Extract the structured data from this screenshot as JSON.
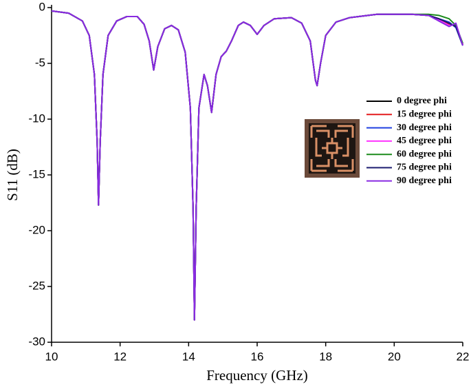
{
  "chart_data": {
    "type": "line",
    "xlabel": "Frequency (GHz)",
    "ylabel": "S11 (dB)",
    "xlim": [
      10,
      22
    ],
    "xticks": [
      10,
      12,
      14,
      16,
      18,
      20,
      22
    ],
    "ylim": [
      -30,
      0
    ],
    "yticks": [
      0,
      -5,
      -10,
      -15,
      -20,
      -25,
      -30
    ],
    "x": [
      10,
      10.5,
      10.9,
      11.1,
      11.25,
      11.33,
      11.37,
      11.42,
      11.5,
      11.65,
      11.9,
      12.2,
      12.5,
      12.7,
      12.85,
      12.98,
      13.1,
      13.3,
      13.5,
      13.7,
      13.9,
      14.05,
      14.13,
      14.17,
      14.22,
      14.3,
      14.45,
      14.55,
      14.67,
      14.8,
      14.95,
      15.1,
      15.25,
      15.45,
      15.6,
      15.8,
      16.0,
      16.2,
      16.5,
      17.0,
      17.3,
      17.55,
      17.7,
      17.75,
      17.85,
      18.0,
      18.3,
      18.7,
      19.5,
      20.5,
      21,
      21.3,
      21.6,
      21.8,
      22
    ],
    "series": [
      {
        "name": "0 degree phi",
        "color": "#000000",
        "values": [
          -0.3,
          -0.5,
          -1.2,
          -2.5,
          -6,
          -12,
          -17.7,
          -12,
          -6,
          -2.5,
          -1.2,
          -0.8,
          -0.8,
          -1.5,
          -3,
          -5.6,
          -3.5,
          -1.9,
          -1.6,
          -2,
          -4,
          -9,
          -18,
          -28,
          -18,
          -9,
          -6,
          -7,
          -9.4,
          -6,
          -4.4,
          -3.9,
          -3,
          -1.6,
          -1.3,
          -1.6,
          -2.4,
          -1.6,
          -1,
          -0.9,
          -1.4,
          -3,
          -6.5,
          -7,
          -5,
          -2.5,
          -1.3,
          -0.9,
          -0.6,
          -0.6,
          -0.7,
          -1.0,
          -1.5,
          -1.6,
          -3.3
        ]
      },
      {
        "name": "15 degree phi",
        "color": "#e31a1c",
        "values": [
          -0.3,
          -0.5,
          -1.2,
          -2.5,
          -6,
          -12,
          -17.7,
          -12,
          -6,
          -2.5,
          -1.2,
          -0.8,
          -0.8,
          -1.5,
          -3,
          -5.6,
          -3.5,
          -1.9,
          -1.6,
          -2,
          -4,
          -9,
          -18,
          -28,
          -18,
          -9,
          -6,
          -7,
          -9.4,
          -6,
          -4.4,
          -3.9,
          -3,
          -1.6,
          -1.3,
          -1.6,
          -2.4,
          -1.6,
          -1,
          -0.9,
          -1.4,
          -3,
          -6.5,
          -7,
          -5,
          -2.5,
          -1.3,
          -0.9,
          -0.6,
          -0.6,
          -0.7,
          -1.0,
          -1.5,
          -1.6,
          -3.3
        ]
      },
      {
        "name": "30 degree phi",
        "color": "#1f3fe0",
        "values": [
          -0.3,
          -0.5,
          -1.2,
          -2.5,
          -6,
          -12,
          -17.7,
          -12,
          -6,
          -2.5,
          -1.2,
          -0.8,
          -0.8,
          -1.5,
          -3,
          -5.6,
          -3.5,
          -1.9,
          -1.6,
          -2,
          -4,
          -9,
          -18,
          -28,
          -18,
          -9,
          -6,
          -7,
          -9.4,
          -6,
          -4.4,
          -3.9,
          -3,
          -1.6,
          -1.3,
          -1.6,
          -2.4,
          -1.6,
          -1,
          -0.9,
          -1.4,
          -3,
          -6.5,
          -7,
          -5,
          -2.5,
          -1.3,
          -0.9,
          -0.6,
          -0.6,
          -0.7,
          -1.0,
          -1.3,
          -1.8,
          -3.4
        ]
      },
      {
        "name": "45 degree phi",
        "color": "#ff33ff",
        "values": [
          -0.3,
          -0.5,
          -1.2,
          -2.5,
          -6,
          -12,
          -17.7,
          -12,
          -6,
          -2.5,
          -1.2,
          -0.8,
          -0.8,
          -1.5,
          -3,
          -5.6,
          -3.5,
          -1.9,
          -1.6,
          -2,
          -4,
          -9,
          -18,
          -28,
          -18,
          -9,
          -6,
          -7,
          -9.4,
          -6,
          -4.4,
          -3.9,
          -3,
          -1.6,
          -1.3,
          -1.6,
          -2.4,
          -1.6,
          -1,
          -0.9,
          -1.4,
          -3,
          -6.5,
          -7,
          -5,
          -2.5,
          -1.3,
          -0.9,
          -0.6,
          -0.6,
          -0.7,
          -1.1,
          -1.6,
          -1.5,
          -3.3
        ]
      },
      {
        "name": "60 degree phi",
        "color": "#1a8a1a",
        "values": [
          -0.3,
          -0.5,
          -1.2,
          -2.5,
          -6,
          -12,
          -17.7,
          -12,
          -6,
          -2.5,
          -1.2,
          -0.8,
          -0.8,
          -1.5,
          -3,
          -5.6,
          -3.5,
          -1.9,
          -1.6,
          -2,
          -4,
          -9,
          -18,
          -28,
          -18,
          -9,
          -6,
          -7,
          -9.4,
          -6,
          -4.4,
          -3.9,
          -3,
          -1.6,
          -1.3,
          -1.6,
          -2.4,
          -1.6,
          -1,
          -0.9,
          -1.4,
          -3,
          -6.5,
          -7,
          -5,
          -2.5,
          -1.3,
          -0.9,
          -0.6,
          -0.6,
          -0.6,
          -0.7,
          -1.0,
          -1.6,
          -3.2
        ]
      },
      {
        "name": "75 degree phi",
        "color": "#1a1a6e",
        "values": [
          -0.3,
          -0.5,
          -1.2,
          -2.5,
          -6,
          -12,
          -17.7,
          -12,
          -6,
          -2.5,
          -1.2,
          -0.8,
          -0.8,
          -1.5,
          -3,
          -5.6,
          -3.5,
          -1.9,
          -1.6,
          -2,
          -4,
          -9,
          -18,
          -28,
          -18,
          -9,
          -6,
          -7,
          -9.4,
          -6,
          -4.4,
          -3.9,
          -3,
          -1.6,
          -1.3,
          -1.6,
          -2.4,
          -1.6,
          -1,
          -0.9,
          -1.4,
          -3,
          -6.5,
          -7,
          -5,
          -2.5,
          -1.3,
          -0.9,
          -0.6,
          -0.6,
          -0.7,
          -1.0,
          -1.4,
          -1.7,
          -3.4
        ]
      },
      {
        "name": "90 degree phi",
        "color": "#8a2be2",
        "values": [
          -0.3,
          -0.5,
          -1.2,
          -2.5,
          -6,
          -12,
          -17.7,
          -12,
          -6,
          -2.5,
          -1.2,
          -0.8,
          -0.8,
          -1.5,
          -3,
          -5.6,
          -3.5,
          -1.9,
          -1.6,
          -2,
          -4,
          -9,
          -18,
          -28,
          -18,
          -9,
          -6,
          -7,
          -9.4,
          -6,
          -4.4,
          -3.9,
          -3,
          -1.6,
          -1.3,
          -1.6,
          -2.4,
          -1.6,
          -1,
          -0.9,
          -1.4,
          -3,
          -6.5,
          -7,
          -5,
          -2.5,
          -1.3,
          -0.9,
          -0.6,
          -0.6,
          -0.7,
          -1.2,
          -1.7,
          -1.4,
          -3.4
        ]
      }
    ]
  }
}
